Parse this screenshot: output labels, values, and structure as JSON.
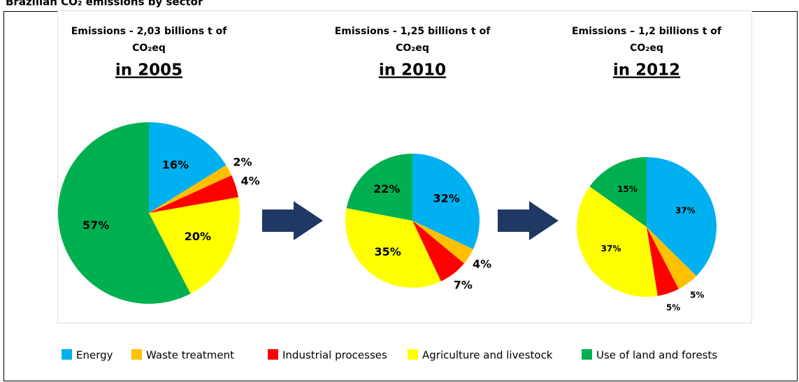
{
  "title": "Brazilian CO₂ emissions by sector",
  "legend": {
    "labels": [
      "Energy",
      "Waste treatment",
      "Industrial processes",
      "Agriculture and livestock",
      "Use of land and forests"
    ],
    "colors": [
      "#00b0f0",
      "#ffc000",
      "#ff0000",
      "#ffff00",
      "#00b050"
    ]
  },
  "chart_data": [
    {
      "type": "pie",
      "title": "Emissions - 2,03 billions t of",
      "subtitle": "CO₂eq",
      "annotation": "in 2005",
      "values": [
        16,
        2,
        4,
        20,
        57
      ],
      "value_labels": [
        "16%",
        "2%",
        "4%",
        "20%",
        "57%"
      ]
    },
    {
      "type": "pie",
      "title": "Emissions - 1,25 billions t of",
      "subtitle": "CO₂eq",
      "annotation": "in 2010",
      "values": [
        32,
        4,
        7,
        35,
        22
      ],
      "value_labels": [
        "32%",
        "4%",
        "7%",
        "35%",
        "22%"
      ]
    },
    {
      "type": "pie",
      "title": "Emissions – 1,2 billions t of",
      "subtitle": "CO₂eq",
      "annotation": "in 2012",
      "values": [
        37,
        5,
        5,
        37,
        15
      ],
      "value_labels": [
        "37%",
        "5%",
        "5%",
        "37%",
        "15%"
      ]
    }
  ]
}
